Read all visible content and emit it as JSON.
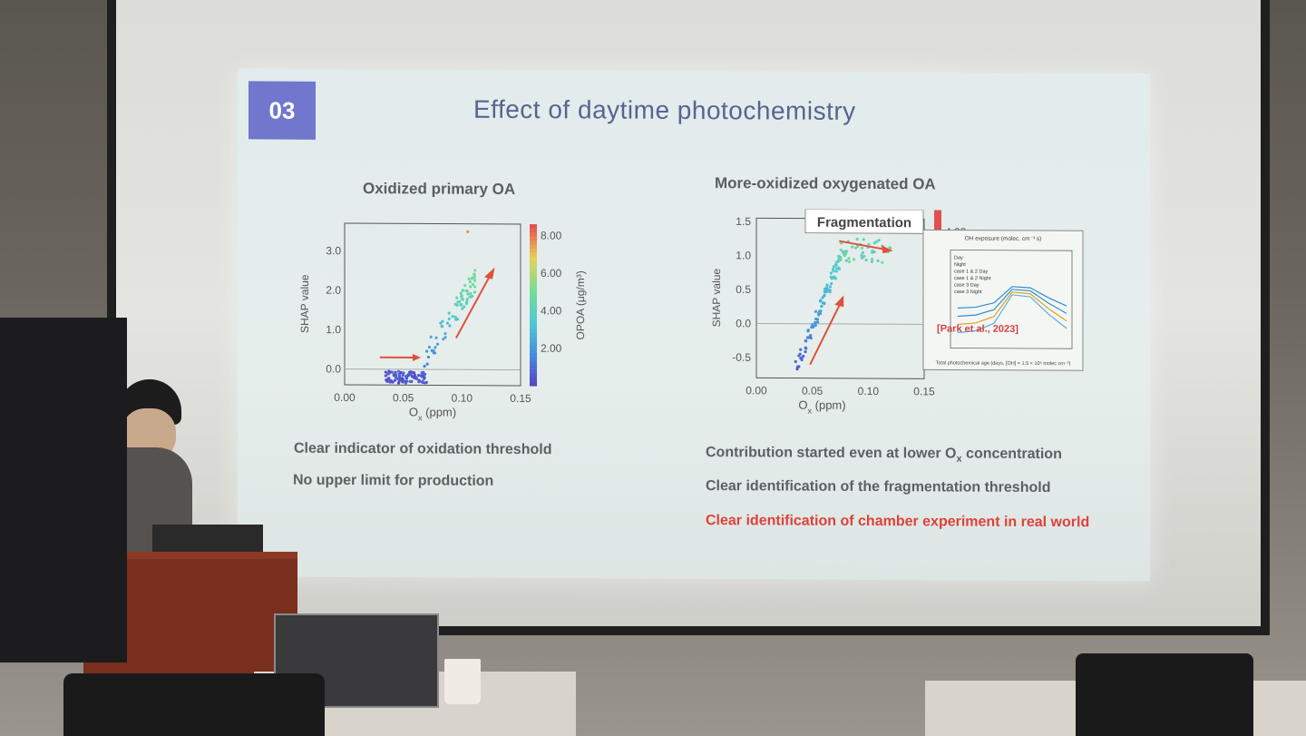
{
  "slide": {
    "number": "03",
    "title": "Effect of daytime photochemistry",
    "left_panel": {
      "heading": "Oxidized primary OA",
      "bullets": [
        "Clear indicator of oxidation threshold",
        "No upper limit for production"
      ]
    },
    "right_panel": {
      "heading": "More-oxidized oxygenated OA",
      "bullets": [
        "Contribution started even at lower O",
        "Clear identification of the fragmentation threshold",
        "Clear identification of chamber experiment in real world"
      ],
      "bullet1_suffix": "x",
      "bullet1_tail": " concentration"
    }
  },
  "chart_data": [
    {
      "type": "scatter",
      "xlabel": "O",
      "xlabel_sub": "x",
      "xlabel_unit": " (ppm)",
      "ylabel": "SHAP value",
      "x_ticks": [
        "0.00",
        "0.05",
        "0.10",
        "0.15"
      ],
      "y_ticks": [
        "0.0",
        "1.0",
        "2.0",
        "3.0"
      ],
      "xlim": [
        0.0,
        0.15
      ],
      "ylim": [
        -0.4,
        3.7
      ],
      "colorbar_label": "OPOA (μg/m³)",
      "colorbar_ticks": [
        "2.00",
        "4.00",
        "6.00",
        "8.00"
      ]
    },
    {
      "type": "scatter",
      "xlabel": "O",
      "xlabel_sub": "x",
      "xlabel_unit": " (ppm)",
      "ylabel": "SHAP value",
      "x_ticks": [
        "0.00",
        "0.05",
        "0.10",
        "0.15"
      ],
      "y_ticks": [
        "-0.5",
        "0.0",
        "0.5",
        "1.0",
        "1.5"
      ],
      "xlim": [
        0.0,
        0.15
      ],
      "ylim": [
        -0.8,
        1.55
      ],
      "annotation": "Fragmentation",
      "colorbar_tick": "4.00",
      "inset": {
        "top_label": "OH exposure (molec. cm⁻³ s)",
        "legend": [
          "Day",
          "Night",
          "case 1 & 2 Day",
          "case 1 & 2 Night",
          "case 3 Day",
          "case 3 Night"
        ],
        "citation": "[Park et al., 2023]",
        "bottom_label": "Total photochemical age (days, [OH] = 1.5 × 10⁶ molec cm⁻³)"
      }
    }
  ]
}
